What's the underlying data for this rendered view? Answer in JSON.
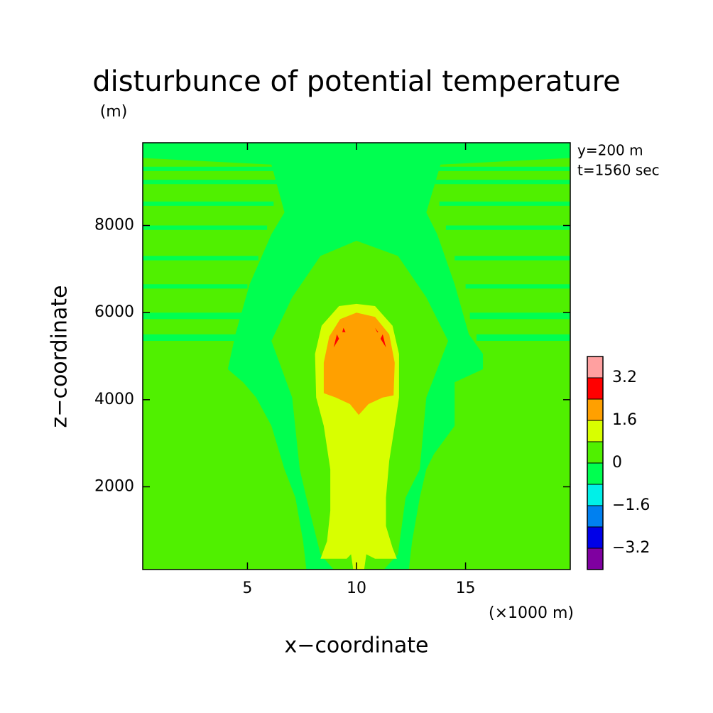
{
  "chart_data": {
    "type": "contourf",
    "title": "disturbunce of potential temperature",
    "y_unit": "(m)",
    "x_label": "x−coordinate",
    "y_label": "z−coordinate",
    "x_unit": "(×1000 m)",
    "annotations": [
      "y=200 m",
      "t=1560 sec"
    ],
    "xlim": [
      0.2,
      19.8
    ],
    "ylim": [
      100,
      9900
    ],
    "xticks": [
      5,
      10,
      15
    ],
    "yticks": [
      2000,
      4000,
      6000,
      8000
    ],
    "colorbar": {
      "levels": [
        -4,
        -3.2,
        -2.4,
        -1.6,
        -0.8,
        0,
        0.8,
        1.6,
        2.4,
        3.2,
        4
      ],
      "colors": [
        "#7f00a0",
        "#0000e8",
        "#0080f0",
        "#00f0e8",
        "#00ff50",
        "#50f000",
        "#d8ff00",
        "#ffa000",
        "#ff0000",
        "#ffa0a0"
      ],
      "ticks": [
        {
          "value": -3.2,
          "label": "−3.2"
        },
        {
          "value": -1.6,
          "label": "−1.6"
        },
        0,
        1.6,
        3.2
      ]
    },
    "background_level": 0,
    "regions": [
      {
        "level": -0.8,
        "x": [
          0.2,
          19.8,
          19.8,
          13.85,
          13.2,
          13.7,
          14.5,
          15.15,
          15.8,
          15.8,
          14.5,
          14.5,
          13.55,
          13.2,
          12.9,
          12.55,
          12.4,
          7.7,
          7.55,
          7.2,
          6.7,
          6.1,
          5.4,
          4.8,
          4.1,
          4.45,
          5.1,
          6.1,
          6.7,
          6.1,
          0.2
        ],
        "z": [
          9900,
          9900,
          9550,
          9400,
          8300,
          7800,
          6650,
          5500,
          5050,
          4700,
          4400,
          3400,
          2750,
          2400,
          1750,
          750,
          100,
          100,
          750,
          1750,
          2400,
          3400,
          4050,
          4400,
          4700,
          5500,
          6650,
          7800,
          8300,
          9400,
          9550
        ]
      },
      {
        "level": 0,
        "x": [
          10,
          11.9,
          13.2,
          14.2,
          13.2,
          12.9,
          12.25,
          11.9,
          11.25,
          8.95,
          8.35,
          7.7,
          7.4,
          7.05,
          6.1,
          7.05,
          8.35
        ],
        "z": [
          7650,
          7300,
          6350,
          5350,
          4050,
          2400,
          1750,
          450,
          100,
          100,
          450,
          1750,
          2400,
          4050,
          5350,
          6350,
          7300
        ]
      },
      {
        "level": -0.8,
        "x": [
          0.2,
          6.7,
          6.7,
          0.2
        ],
        "z": [
          9350,
          9350,
          9250,
          9250
        ]
      },
      {
        "level": -0.8,
        "x": [
          0.2,
          6.4,
          6.4,
          0.2
        ],
        "z": [
          9050,
          9050,
          8950,
          8950
        ]
      },
      {
        "level": -0.8,
        "x": [
          0.2,
          6.2,
          6.2,
          0.2
        ],
        "z": [
          8550,
          8550,
          8450,
          8450
        ]
      },
      {
        "level": -0.8,
        "x": [
          0.2,
          5.9,
          5.9,
          0.2
        ],
        "z": [
          8000,
          8000,
          7900,
          7900
        ]
      },
      {
        "level": -0.8,
        "x": [
          0.2,
          5.5,
          5.5,
          0.2
        ],
        "z": [
          7300,
          7300,
          7200,
          7200
        ]
      },
      {
        "level": -0.8,
        "x": [
          0.2,
          5.0,
          5.0,
          0.2
        ],
        "z": [
          6650,
          6650,
          6550,
          6550
        ]
      },
      {
        "level": -0.8,
        "x": [
          0.2,
          4.8,
          4.8,
          0.2
        ],
        "z": [
          6000,
          6000,
          5850,
          5850
        ]
      },
      {
        "level": -0.8,
        "x": [
          0.2,
          4.5,
          4.5,
          0.2
        ],
        "z": [
          5500,
          5500,
          5350,
          5350
        ]
      },
      {
        "level": -0.8,
        "x": [
          13.3,
          19.8,
          19.8,
          13.3
        ],
        "z": [
          9350,
          9350,
          9250,
          9250
        ]
      },
      {
        "level": -0.8,
        "x": [
          13.6,
          19.8,
          19.8,
          13.6
        ],
        "z": [
          9050,
          9050,
          8950,
          8950
        ]
      },
      {
        "level": -0.8,
        "x": [
          13.8,
          19.8,
          19.8,
          13.8
        ],
        "z": [
          8550,
          8550,
          8450,
          8450
        ]
      },
      {
        "level": -0.8,
        "x": [
          14.1,
          19.8,
          19.8,
          14.1
        ],
        "z": [
          8000,
          8000,
          7900,
          7900
        ]
      },
      {
        "level": -0.8,
        "x": [
          14.5,
          19.8,
          19.8,
          14.5
        ],
        "z": [
          7300,
          7300,
          7200,
          7200
        ]
      },
      {
        "level": -0.8,
        "x": [
          15.0,
          19.8,
          19.8,
          15.0
        ],
        "z": [
          6650,
          6650,
          6550,
          6550
        ]
      },
      {
        "level": -0.8,
        "x": [
          15.2,
          19.8,
          19.8,
          15.2
        ],
        "z": [
          6000,
          6000,
          5850,
          5850
        ]
      },
      {
        "level": -0.8,
        "x": [
          15.5,
          19.8,
          19.8,
          15.5
        ],
        "z": [
          5500,
          5500,
          5350,
          5350
        ]
      },
      {
        "level": 0.8,
        "x": [
          10,
          10.85,
          11.65,
          11.95,
          11.95,
          11.75,
          11.5,
          11.35,
          11.35,
          11.65,
          11.85,
          10.85,
          10.45,
          10.35,
          9.85,
          9.75,
          9.55,
          8.35,
          8.65,
          8.8,
          8.8,
          8.5,
          8.15,
          8.1,
          8.4,
          9.2
        ],
        "z": [
          6200,
          6150,
          5700,
          5050,
          4050,
          3400,
          2600,
          1750,
          1100,
          600,
          350,
          350,
          450,
          100,
          100,
          450,
          350,
          350,
          750,
          1450,
          2400,
          3400,
          4050,
          5050,
          5700,
          6150
        ]
      },
      {
        "level": 1.6,
        "x": [
          10,
          10.85,
          11.5,
          11.75,
          11.7,
          11.2,
          10.55,
          10.1,
          9.7,
          9.05,
          8.5,
          8.5,
          8.75,
          9.25
        ],
        "z": [
          6000,
          5900,
          5500,
          4850,
          4100,
          4050,
          3900,
          3650,
          3900,
          4050,
          4150,
          4850,
          5450,
          5850
        ]
      },
      {
        "level": 2.4,
        "x": [
          8.95,
          9.1,
          9.2
        ],
        "z": [
          5200,
          5500,
          5400
        ]
      },
      {
        "level": 2.4,
        "x": [
          11.35,
          11.2,
          11.1
        ],
        "z": [
          5200,
          5500,
          5400
        ]
      },
      {
        "level": 2.4,
        "x": [
          9.4,
          9.5,
          9.35
        ],
        "z": [
          5650,
          5550,
          5550
        ]
      },
      {
        "level": 2.4,
        "x": [
          10.85,
          10.95,
          11.0
        ],
        "z": [
          5650,
          5550,
          5550
        ]
      }
    ]
  }
}
